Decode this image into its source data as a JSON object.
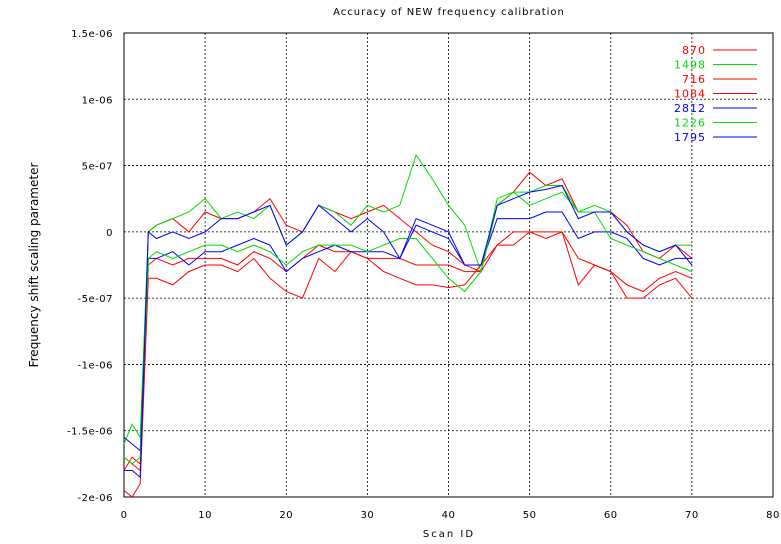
{
  "chart_data": {
    "type": "line",
    "title": "Accuracy of NEW frequency calibration",
    "xlabel": "Scan ID",
    "ylabel": "Frequency shift scaling parameter",
    "xlim": [
      0,
      80
    ],
    "ylim": [
      -2e-06,
      1.5e-06
    ],
    "x_ticks": [
      "0",
      "10",
      "20",
      "30",
      "40",
      "50",
      "60",
      "70",
      "80"
    ],
    "y_ticks": [
      "1.5e-06",
      "1e-06",
      "5e-07",
      "0",
      "-5e-07",
      "-1e-06",
      "-1.5e-06",
      "-2e-06"
    ],
    "grid": true,
    "legend_position": "top-right",
    "series": [
      {
        "name": "870",
        "color": "#ff0000",
        "x": [
          0,
          1,
          2,
          3,
          4,
          6,
          8,
          10,
          12,
          14,
          16,
          18,
          20,
          22,
          24,
          26,
          28,
          30,
          32,
          34,
          36,
          38,
          40,
          42,
          44,
          46,
          48,
          50,
          52,
          54,
          56,
          58,
          60,
          62,
          64,
          66,
          68,
          70
        ],
        "values": [
          -1.7e-06,
          -1.75e-06,
          -1.8e-06,
          0,
          5e-08,
          1e-07,
          0,
          1.5e-07,
          1e-07,
          1e-07,
          1.5e-07,
          2.5e-07,
          5e-08,
          0,
          2e-07,
          1.5e-07,
          1e-07,
          1.5e-07,
          2e-07,
          1e-07,
          0,
          -1e-07,
          -1.5e-07,
          -2.5e-07,
          -3e-07,
          2e-07,
          3e-07,
          4.5e-07,
          3.5e-07,
          4e-07,
          1.5e-07,
          1.5e-07,
          1.5e-07,
          5e-08,
          -1.5e-07,
          -2e-07,
          -1e-07,
          -2e-07
        ]
      },
      {
        "name": "1498",
        "color": "#00dd00",
        "x": [
          0,
          1,
          2,
          3,
          4,
          6,
          8,
          10,
          12,
          14,
          16,
          18,
          20,
          22,
          24,
          26,
          28,
          30,
          32,
          34,
          36,
          38,
          40,
          42,
          44,
          46,
          48,
          50,
          52,
          54,
          56,
          58,
          60,
          62,
          64,
          66,
          68,
          70
        ],
        "values": [
          -1.6e-06,
          -1.45e-06,
          -1.55e-06,
          0,
          5e-08,
          1e-07,
          1.5e-07,
          2.5e-07,
          1e-07,
          1.5e-07,
          1e-07,
          2e-07,
          -1e-07,
          0,
          2e-07,
          1.5e-07,
          5e-08,
          2e-07,
          1.5e-07,
          2e-07,
          5.8e-07,
          4e-07,
          2e-07,
          5e-08,
          -3e-07,
          2.5e-07,
          3e-07,
          3e-07,
          3.5e-07,
          3.5e-07,
          1.5e-07,
          2e-07,
          1.5e-07,
          0,
          -1e-07,
          -1.5e-07,
          -1e-07,
          -1e-07
        ]
      },
      {
        "name": "716",
        "color": "#ff0000",
        "x": [
          0,
          1,
          2,
          3,
          4,
          6,
          8,
          10,
          12,
          14,
          16,
          18,
          20,
          22,
          24,
          26,
          28,
          30,
          32,
          34,
          36,
          38,
          40,
          42,
          44,
          46,
          48,
          50,
          52,
          54,
          56,
          58,
          60,
          62,
          64,
          66,
          68,
          70
        ],
        "values": [
          -1.95e-06,
          -2e-06,
          -1.9e-06,
          -3.5e-07,
          -3.5e-07,
          -4e-07,
          -3e-07,
          -2.5e-07,
          -2.5e-07,
          -3e-07,
          -2e-07,
          -3.5e-07,
          -4.5e-07,
          -5e-07,
          -2e-07,
          -3e-07,
          -1.5e-07,
          -2e-07,
          -3e-07,
          -3.5e-07,
          -4e-07,
          -4e-07,
          -4.2e-07,
          -4e-07,
          -2.5e-07,
          -1e-07,
          -1e-07,
          0,
          0,
          0,
          -4e-07,
          -2.5e-07,
          -3e-07,
          -5e-07,
          -5e-07,
          -4e-07,
          -3.5e-07,
          -5e-07
        ]
      },
      {
        "name": "1084",
        "color": "#ff0000",
        "x": [
          0,
          1,
          2,
          3,
          4,
          6,
          8,
          10,
          12,
          14,
          16,
          18,
          20,
          22,
          24,
          26,
          28,
          30,
          32,
          34,
          36,
          38,
          40,
          42,
          44,
          46,
          48,
          50,
          52,
          54,
          56,
          58,
          60,
          62,
          64,
          66,
          68,
          70
        ],
        "values": [
          -1.8e-06,
          -1.7e-06,
          -1.75e-06,
          -2.5e-07,
          -2e-07,
          -2.5e-07,
          -2e-07,
          -2e-07,
          -2e-07,
          -2.5e-07,
          -1.5e-07,
          -2e-07,
          -3e-07,
          -2e-07,
          -1e-07,
          -1.5e-07,
          -1.5e-07,
          -2e-07,
          -2e-07,
          -2e-07,
          -2.5e-07,
          -2.5e-07,
          -2.5e-07,
          -3e-07,
          -3e-07,
          -1e-07,
          0,
          0,
          -5e-08,
          0,
          -2e-07,
          -2.5e-07,
          -3e-07,
          -4e-07,
          -4.5e-07,
          -3.5e-07,
          -3e-07,
          -3.5e-07
        ]
      },
      {
        "name": "2812",
        "color": "#0000ff",
        "x": [
          0,
          1,
          2,
          3,
          4,
          6,
          8,
          10,
          12,
          14,
          16,
          18,
          20,
          22,
          24,
          26,
          28,
          30,
          32,
          34,
          36,
          38,
          40,
          42,
          44,
          46,
          48,
          50,
          52,
          54,
          56,
          58,
          60,
          62,
          64,
          66,
          68,
          70
        ],
        "values": [
          -1.55e-06,
          -1.6e-06,
          -1.65e-06,
          -2e-07,
          -2e-07,
          -1.5e-07,
          -2.5e-07,
          -1.5e-07,
          -1.5e-07,
          -1e-07,
          -5e-08,
          -1e-07,
          -3e-07,
          -2e-07,
          -1.5e-07,
          -1e-07,
          -1.5e-07,
          -1.5e-07,
          -1.5e-07,
          -2e-07,
          5e-08,
          0,
          -5e-08,
          -2.5e-07,
          -2.5e-07,
          1e-07,
          1e-07,
          1e-07,
          1.5e-07,
          1.5e-07,
          -5e-08,
          0,
          0,
          -5e-08,
          -2e-07,
          -2.5e-07,
          -2e-07,
          -2e-07
        ]
      },
      {
        "name": "1226",
        "color": "#00dd00",
        "x": [
          0,
          1,
          2,
          3,
          4,
          6,
          8,
          10,
          12,
          14,
          16,
          18,
          20,
          22,
          24,
          26,
          28,
          30,
          32,
          34,
          36,
          38,
          40,
          42,
          44,
          46,
          48,
          50,
          52,
          54,
          56,
          58,
          60,
          62,
          64,
          66,
          68,
          70
        ],
        "values": [
          -1.7e-06,
          -1.75e-06,
          -1.7e-06,
          -2e-07,
          -1.5e-07,
          -2e-07,
          -1.5e-07,
          -1e-07,
          -1e-07,
          -1.5e-07,
          -1e-07,
          -1.5e-07,
          -2.5e-07,
          -1.5e-07,
          -1e-07,
          -1e-07,
          -1e-07,
          -1.5e-07,
          -1e-07,
          -5e-08,
          -5e-08,
          -2e-07,
          -3.5e-07,
          -4.5e-07,
          -3e-07,
          2e-07,
          3e-07,
          2e-07,
          2.5e-07,
          3e-07,
          1.5e-07,
          1.5e-07,
          -5e-08,
          -1e-07,
          -1.5e-07,
          -2e-07,
          -2.5e-07,
          -3e-07
        ]
      },
      {
        "name": "1795",
        "color": "#0000ff",
        "x": [
          0,
          1,
          2,
          3,
          4,
          6,
          8,
          10,
          12,
          14,
          16,
          18,
          20,
          22,
          24,
          26,
          28,
          30,
          32,
          34,
          36,
          38,
          40,
          42,
          44,
          46,
          48,
          50,
          52,
          54,
          56,
          58,
          60,
          62,
          64,
          66,
          68,
          70
        ],
        "values": [
          -1.8e-06,
          -1.8e-06,
          -1.85e-06,
          0,
          -5e-08,
          0,
          -5e-08,
          0,
          1e-07,
          1e-07,
          1.5e-07,
          2e-07,
          -1e-07,
          0,
          2e-07,
          1e-07,
          0,
          1e-07,
          0,
          -2e-07,
          1e-07,
          5e-08,
          0,
          -2.5e-07,
          -2.5e-07,
          2e-07,
          2.5e-07,
          3e-07,
          3.2e-07,
          3.5e-07,
          1e-07,
          1.5e-07,
          1.5e-07,
          0,
          -1e-07,
          -1.5e-07,
          -1e-07,
          -2.5e-07
        ]
      }
    ]
  }
}
